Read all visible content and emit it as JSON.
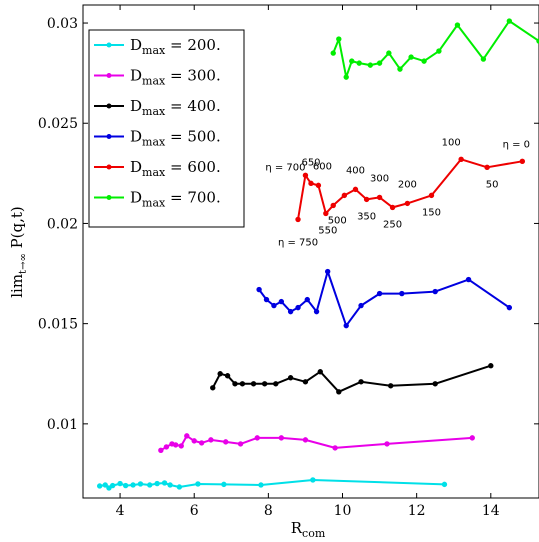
{
  "chart_data": {
    "type": "line",
    "xlabel": "R_com",
    "xlabel_main": "R",
    "xlabel_sub": "com",
    "ylabel": "lim_{t→∞} P(q,t)",
    "ylabel_lim": "lim",
    "ylabel_sub": "t→∞",
    "ylabel_rest": " P(q,t)",
    "xlim": [
      3.0,
      15.3
    ],
    "ylim": [
      0.0063,
      0.0309
    ],
    "xticks": [
      4,
      6,
      8,
      10,
      12,
      14
    ],
    "xtick_labels": [
      "4",
      "6",
      "8",
      "10",
      "12",
      "14"
    ],
    "yticks": [
      0.01,
      0.015,
      0.02,
      0.025,
      0.03
    ],
    "ytick_labels": [
      "0.01",
      "0.015",
      "0.02",
      "0.025",
      "0.03"
    ],
    "grid": false,
    "legend_position": "top-left",
    "series": [
      {
        "name": "D_max = 200.",
        "legend_main": "D",
        "legend_sub": "max",
        "legend_value": " = 200.",
        "color": "#00e0e8",
        "x": [
          3.45,
          3.6,
          3.7,
          3.8,
          4.0,
          4.15,
          4.35,
          4.55,
          4.8,
          5.0,
          5.2,
          5.35,
          5.6,
          6.1,
          6.8,
          7.8,
          9.2,
          12.75
        ],
        "y": [
          0.0069,
          0.00695,
          0.0068,
          0.00692,
          0.00702,
          0.00692,
          0.00695,
          0.007,
          0.00695,
          0.00702,
          0.00705,
          0.00695,
          0.00685,
          0.007,
          0.00698,
          0.00695,
          0.0072,
          0.00698
        ]
      },
      {
        "name": "D_max = 300.",
        "legend_main": "D",
        "legend_sub": "max",
        "legend_value": " = 300.",
        "color": "#e800e8",
        "x": [
          5.1,
          5.25,
          5.4,
          5.5,
          5.65,
          5.8,
          6.0,
          6.2,
          6.45,
          6.85,
          7.25,
          7.7,
          8.35,
          9.0,
          9.8,
          11.2,
          13.5
        ],
        "y": [
          0.00868,
          0.00885,
          0.009,
          0.00895,
          0.0089,
          0.0094,
          0.00915,
          0.00905,
          0.0092,
          0.0091,
          0.009,
          0.0093,
          0.0093,
          0.0092,
          0.0088,
          0.009,
          0.0093
        ]
      },
      {
        "name": "D_max = 400.",
        "legend_main": "D",
        "legend_sub": "max",
        "legend_value": " = 400.",
        "color": "#000000",
        "x": [
          6.5,
          6.7,
          6.9,
          7.1,
          7.3,
          7.6,
          7.9,
          8.2,
          8.6,
          9.0,
          9.4,
          9.9,
          10.5,
          11.3,
          12.5,
          14.0
        ],
        "y": [
          0.0118,
          0.0125,
          0.0124,
          0.012,
          0.012,
          0.012,
          0.012,
          0.012,
          0.0123,
          0.0121,
          0.0126,
          0.0116,
          0.0121,
          0.0119,
          0.012,
          0.0129
        ]
      },
      {
        "name": "D_max = 500.",
        "legend_main": "D",
        "legend_sub": "max",
        "legend_value": " = 500.",
        "color": "#0000e0",
        "x": [
          7.75,
          7.95,
          8.15,
          8.35,
          8.6,
          8.8,
          9.05,
          9.3,
          9.6,
          10.1,
          10.5,
          11.0,
          11.6,
          12.5,
          13.4,
          14.5
        ],
        "y": [
          0.0167,
          0.0162,
          0.0159,
          0.0161,
          0.0156,
          0.0158,
          0.0162,
          0.0156,
          0.0176,
          0.0149,
          0.0159,
          0.0165,
          0.0165,
          0.0166,
          0.0172,
          0.0158
        ]
      },
      {
        "name": "D_max = 600.",
        "legend_main": "D",
        "legend_sub": "max",
        "legend_value": " = 600.",
        "color": "#ee0000",
        "x": [
          8.8,
          9.0,
          9.15,
          9.35,
          9.55,
          9.75,
          10.05,
          10.35,
          10.65,
          11.0,
          11.35,
          11.75,
          12.4,
          13.2,
          13.9,
          14.85
        ],
        "y": [
          0.0202,
          0.0224,
          0.022,
          0.0219,
          0.0205,
          0.0209,
          0.0214,
          0.0217,
          0.0212,
          0.0213,
          0.0208,
          0.021,
          0.0214,
          0.0232,
          0.0228,
          0.0231
        ],
        "point_labels": [
          "η = 750",
          "η = 700",
          "650",
          "600",
          "550",
          "500",
          "",
          "400",
          "350",
          "300",
          "250",
          "200",
          "150",
          "100",
          "50",
          "η = 0"
        ]
      },
      {
        "name": "D_max = 700.",
        "legend_main": "D",
        "legend_sub": "max",
        "legend_value": " = 700.",
        "color": "#00ee00",
        "x": [
          9.75,
          9.9,
          10.1,
          10.25,
          10.45,
          10.75,
          11.0,
          11.25,
          11.55,
          11.85,
          12.2,
          12.6,
          13.1,
          13.8,
          14.5,
          15.3
        ],
        "y": [
          0.0285,
          0.0292,
          0.0273,
          0.0281,
          0.028,
          0.0279,
          0.028,
          0.0285,
          0.0277,
          0.0283,
          0.0281,
          0.0286,
          0.0299,
          0.0282,
          0.0301,
          0.0291
        ]
      }
    ]
  }
}
